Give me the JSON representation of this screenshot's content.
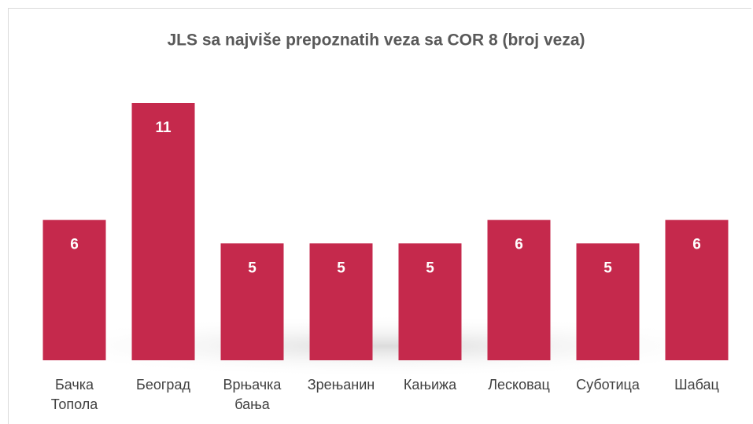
{
  "chart_data": {
    "type": "bar",
    "title": "JLS sa najviše prepoznatih veza sa COR 8 (broj veza)",
    "categories": [
      "Бачка Топола",
      "Београд",
      "Врњачка бања",
      "Зрењанин",
      "Кањижа",
      "Лесковац",
      "Суботица",
      "Шабац"
    ],
    "values": [
      6,
      11,
      5,
      5,
      5,
      6,
      5,
      6
    ],
    "color": "#c5294c",
    "ylim": [
      0,
      11
    ]
  }
}
